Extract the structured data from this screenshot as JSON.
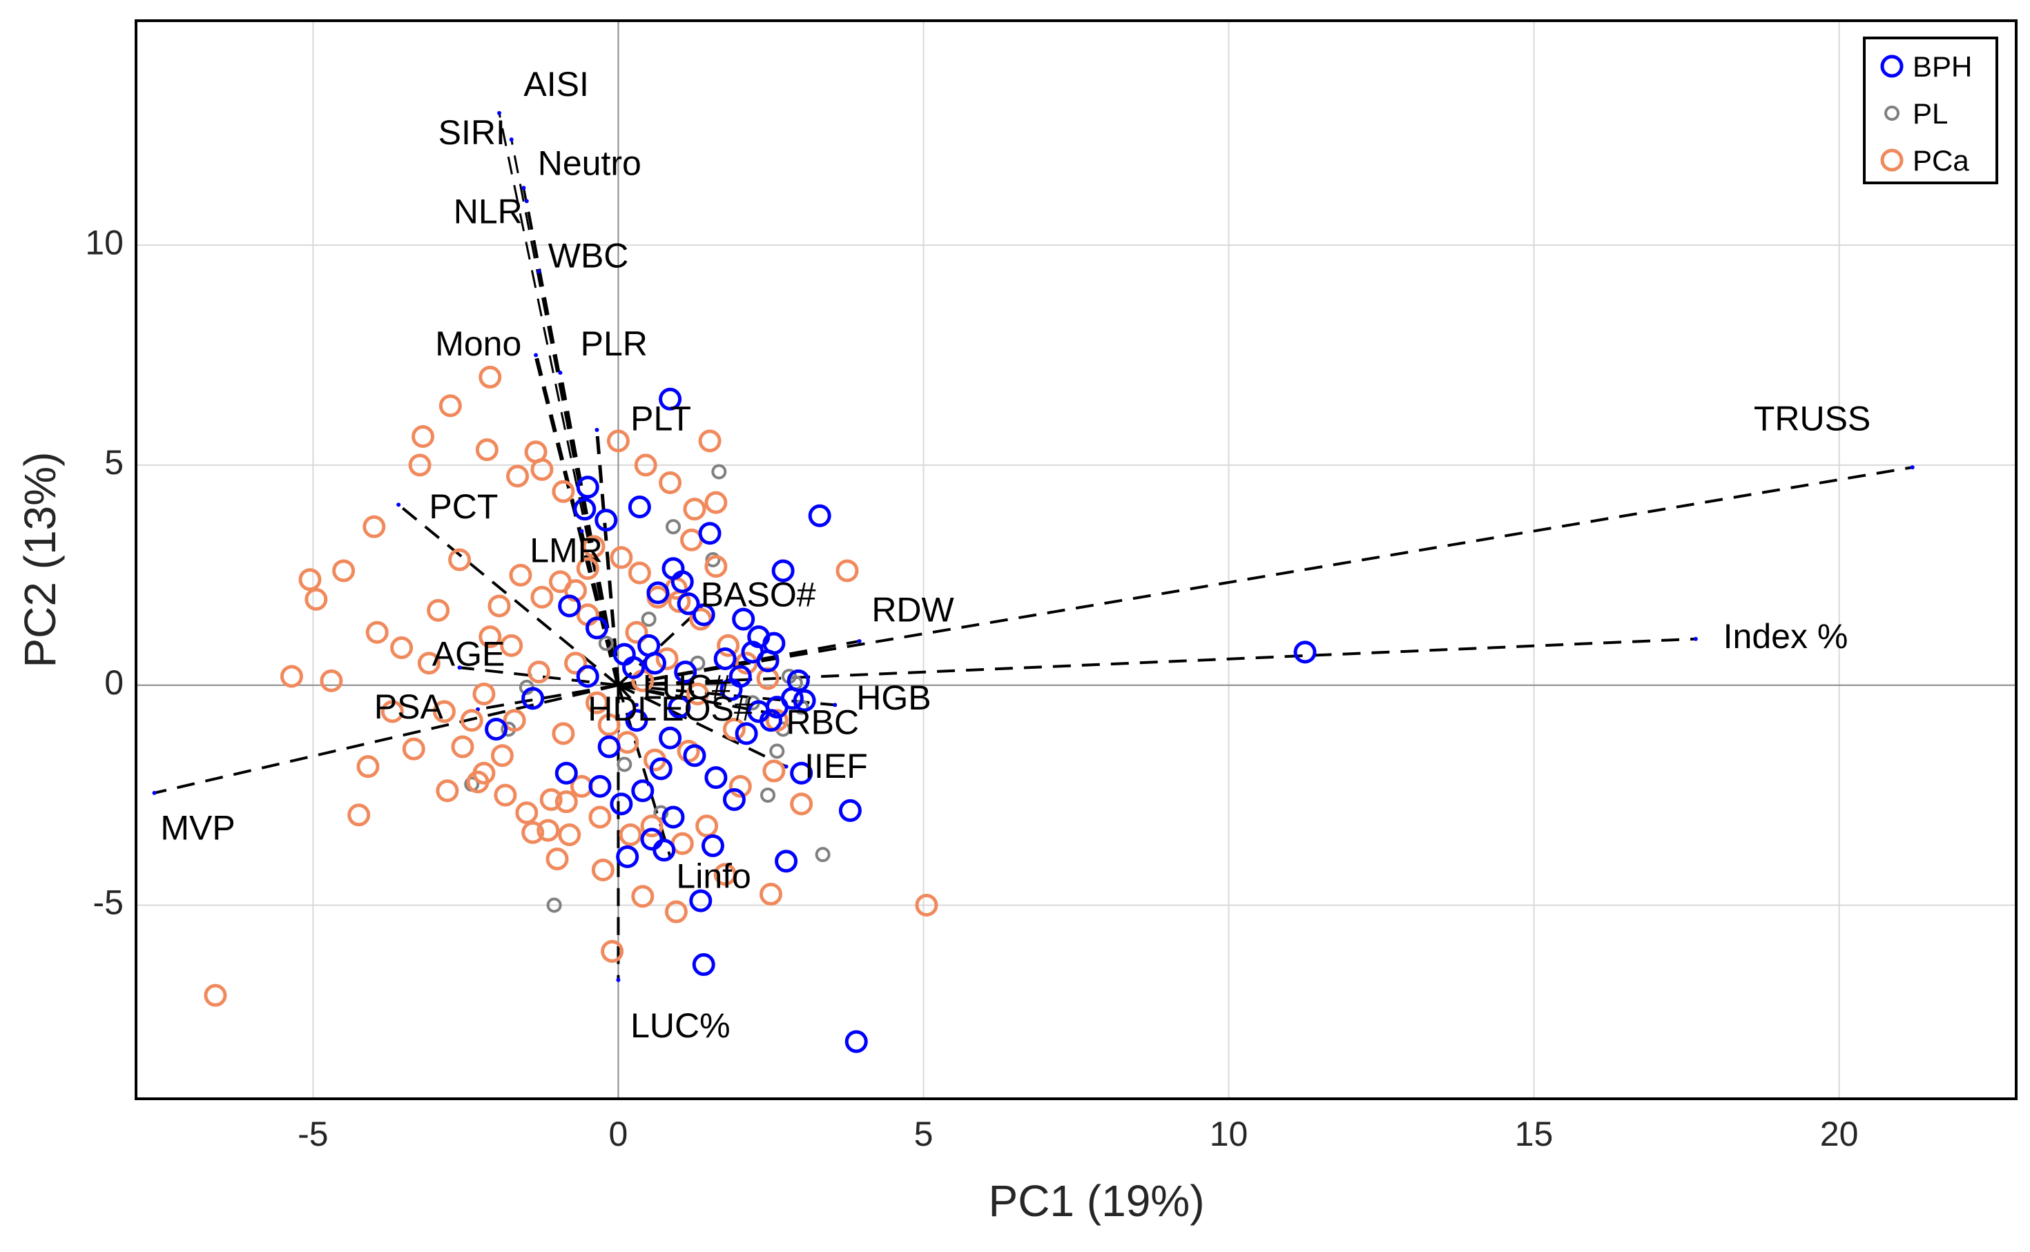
{
  "chart_data": {
    "type": "scatter",
    "subtype": "pca-biplot",
    "title": "",
    "xlabel": "PC1 (19%)",
    "ylabel": "PC2 (13%)",
    "xlim": [
      -7.9,
      22.9
    ],
    "ylim": [
      -9.4,
      15.1
    ],
    "xticks": [
      -5,
      0,
      5,
      10,
      15,
      20
    ],
    "yticks": [
      -5,
      0,
      5,
      10
    ],
    "xtick_labels": [
      "-5",
      "0",
      "5",
      "10",
      "15",
      "20"
    ],
    "ytick_labels": [
      "-5",
      "0",
      "5",
      "10"
    ],
    "grid": true,
    "legend_position": "top-right",
    "loadings": [
      {
        "name": "SIRI",
        "x": -1.95,
        "y": 13.0,
        "lx": -2.95,
        "ly": 12.5,
        "w": 3
      },
      {
        "name": "AISI",
        "x": -1.75,
        "y": 12.4,
        "lx": -1.55,
        "ly": 13.6,
        "w": 3
      },
      {
        "name": "Neutro",
        "x": -1.55,
        "y": 11.3,
        "lx": -1.32,
        "ly": 11.8,
        "w": 3.5
      },
      {
        "name": "NLR",
        "x": -1.5,
        "y": 11.0,
        "lx": -2.7,
        "ly": 10.7,
        "w": 3.5
      },
      {
        "name": "WBC",
        "x": -1.3,
        "y": 9.4,
        "lx": -1.15,
        "ly": 9.7,
        "w": 4
      },
      {
        "name": "Mono",
        "x": -1.35,
        "y": 7.5,
        "lx": -3.0,
        "ly": 7.7,
        "w": 6
      },
      {
        "name": "PLR",
        "x": -0.95,
        "y": 7.1,
        "lx": -0.62,
        "ly": 7.7,
        "w": 5
      },
      {
        "name": "PLT",
        "x": -0.35,
        "y": 5.8,
        "lx": 0.2,
        "ly": 6.0,
        "w": 5
      },
      {
        "name": "PCT",
        "x": -3.6,
        "y": 4.1,
        "lx": -3.1,
        "ly": 4.0,
        "w": 4
      },
      {
        "name": "LMR",
        "x": -0.6,
        "y": 3.5,
        "lx": -1.45,
        "ly": 3.0,
        "w": 4
      },
      {
        "name": "BASO#",
        "x": 1.35,
        "y": 1.75,
        "lx": 1.35,
        "ly": 2.0,
        "w": 4
      },
      {
        "name": "RDW",
        "x": 3.95,
        "y": 1.0,
        "lx": 4.15,
        "ly": 1.65,
        "w": 4
      },
      {
        "name": "TRUSS",
        "x": 21.2,
        "y": 4.95,
        "lx": 18.6,
        "ly": 6.0,
        "w": 4
      },
      {
        "name": "Index %",
        "x": 17.65,
        "y": 1.05,
        "lx": 18.1,
        "ly": 1.05,
        "w": 4
      },
      {
        "name": "AGE",
        "x": -2.6,
        "y": 0.4,
        "lx": -3.05,
        "ly": 0.65,
        "w": 4
      },
      {
        "name": "PSA",
        "x": -2.3,
        "y": -0.55,
        "lx": -4.0,
        "ly": -0.55,
        "w": 4
      },
      {
        "name": "MVP",
        "x": -7.6,
        "y": -2.45,
        "lx": -7.5,
        "ly": -3.3,
        "w": 4
      },
      {
        "name": "HDL",
        "x": 0.3,
        "y": -0.45,
        "lx": -0.5,
        "ly": -0.6,
        "w": 4
      },
      {
        "name": "EOS#",
        "x": 1.2,
        "y": -0.35,
        "lx": 0.7,
        "ly": -0.6,
        "w": 4
      },
      {
        "name": "LUC#",
        "x": 1.7,
        "y": 0.05,
        "lx": 0.4,
        "ly": -0.1,
        "w": 4
      },
      {
        "name": "RBC",
        "x": 2.55,
        "y": -0.65,
        "lx": 2.75,
        "ly": -0.9,
        "w": 4
      },
      {
        "name": "HGB",
        "x": 3.55,
        "y": -0.45,
        "lx": 3.9,
        "ly": -0.35,
        "w": 4
      },
      {
        "name": "IIEF",
        "x": 2.75,
        "y": -1.85,
        "lx": 3.05,
        "ly": -1.9,
        "w": 4
      },
      {
        "name": "Linfo",
        "x": 0.85,
        "y": -3.9,
        "lx": 0.95,
        "ly": -4.4,
        "w": 4
      },
      {
        "name": "LUC%",
        "x": 0.0,
        "y": -6.7,
        "lx": 0.2,
        "ly": -7.8,
        "w": 4
      }
    ],
    "series": [
      {
        "name": "BPH",
        "marker": "circle",
        "color": "#0000ff",
        "size": 14,
        "stroke_width": 5,
        "x": [
          0.85,
          3.3,
          -0.5,
          0.35,
          -0.55,
          -0.2,
          1.5,
          0.9,
          2.7,
          1.05,
          0.65,
          1.15,
          1.4,
          2.05,
          2.3,
          2.55,
          2.45,
          1.75,
          2.95,
          3.05,
          2.85,
          3.0,
          3.8,
          2.75,
          1.55,
          1.35,
          0.55,
          0.75,
          0.15,
          1.4,
          3.9,
          11.25,
          -0.8,
          -0.35,
          0.1,
          -0.5,
          0.6,
          1.1,
          1.85,
          2.3,
          0.3,
          0.85,
          -0.15,
          1.25,
          -0.85,
          0.4,
          0.05,
          2.1,
          1.6,
          2.6,
          0.5,
          -1.4,
          -2.0,
          0.7,
          1.9,
          2.0,
          2.2,
          1.0,
          0.25,
          2.5,
          -0.3,
          0.9
        ],
        "y": [
          6.5,
          3.85,
          4.5,
          4.05,
          4.0,
          3.75,
          3.45,
          2.65,
          2.6,
          2.35,
          2.1,
          1.85,
          1.6,
          1.5,
          1.1,
          0.95,
          0.55,
          0.6,
          0.1,
          -0.35,
          -0.3,
          -2.0,
          -2.85,
          -4.0,
          -3.65,
          -4.9,
          -3.5,
          -3.75,
          -3.9,
          -6.35,
          -8.1,
          0.75,
          1.8,
          1.3,
          0.7,
          0.2,
          0.5,
          0.3,
          -0.1,
          -0.6,
          -0.8,
          -1.2,
          -1.4,
          -1.6,
          -2.0,
          -2.4,
          -2.7,
          -1.1,
          -2.1,
          -0.5,
          0.9,
          -0.3,
          -1.0,
          -1.9,
          -2.6,
          0.2,
          0.75,
          -0.5,
          0.4,
          -0.8,
          -2.3,
          -3.0
        ]
      },
      {
        "name": "PL",
        "marker": "circle",
        "color": "#808080",
        "size": 9,
        "stroke_width": 4,
        "x": [
          1.65,
          0.9,
          1.55,
          2.8,
          3.0,
          2.6,
          2.45,
          3.35,
          -1.05,
          -2.4,
          -1.8,
          2.7,
          2.2,
          1.3,
          0.5,
          -0.2,
          -1.5,
          2.9,
          0.1,
          0.7
        ],
        "y": [
          4.85,
          3.6,
          2.85,
          0.2,
          -0.5,
          -1.5,
          -2.5,
          -3.85,
          -5.0,
          -2.25,
          -1.0,
          -1.0,
          -0.4,
          0.5,
          1.5,
          0.95,
          -0.05,
          0.05,
          -1.8,
          -2.9
        ]
      },
      {
        "name": "PCa",
        "marker": "circle",
        "color": "#f08a5d",
        "size": 14,
        "stroke_width": 5,
        "x": [
          -2.1,
          -2.75,
          -3.2,
          -3.25,
          -2.15,
          -1.35,
          -1.65,
          -1.25,
          0.0,
          0.45,
          0.85,
          1.5,
          1.6,
          1.25,
          3.75,
          1.2,
          -0.4,
          -0.9,
          -4.0,
          -2.6,
          -4.5,
          -5.05,
          -4.95,
          -5.35,
          -4.7,
          -3.7,
          -4.1,
          -3.35,
          -2.8,
          -2.3,
          -1.9,
          -2.4,
          -3.1,
          -2.95,
          -1.6,
          -1.25,
          -0.95,
          -0.7,
          -0.5,
          0.05,
          0.35,
          0.65,
          1.0,
          1.35,
          1.8,
          2.1,
          2.45,
          2.6,
          2.55,
          3.0,
          2.0,
          1.45,
          1.05,
          0.55,
          0.2,
          -0.3,
          -0.8,
          -1.15,
          -1.5,
          -1.85,
          -2.2,
          -2.55,
          -2.85,
          -3.55,
          -3.95,
          -4.25,
          -1.0,
          -1.4,
          -0.85,
          5.05,
          -0.1,
          -6.6,
          2.5,
          1.75,
          0.95,
          0.4,
          -0.25,
          -0.6,
          -1.1,
          -1.7,
          -2.1,
          -0.5,
          0.3,
          0.8,
          1.3,
          1.9,
          -0.35,
          0.15,
          0.6,
          -0.9,
          -1.3,
          -1.75,
          -2.2,
          0.95,
          1.6,
          -0.7,
          -0.15,
          0.4,
          1.15,
          -1.95
        ],
        "y": [
          7.0,
          6.35,
          5.65,
          5.0,
          5.35,
          5.3,
          4.75,
          4.9,
          5.55,
          5.0,
          4.6,
          5.55,
          4.15,
          4.0,
          2.6,
          3.3,
          3.15,
          4.4,
          3.6,
          2.85,
          2.6,
          2.4,
          1.95,
          0.2,
          0.1,
          -0.6,
          -1.85,
          -1.45,
          -2.4,
          -2.2,
          -1.6,
          -0.8,
          0.5,
          1.7,
          2.5,
          2.0,
          2.35,
          2.15,
          2.65,
          2.9,
          2.55,
          2.0,
          1.9,
          1.5,
          0.9,
          0.5,
          0.15,
          -0.8,
          -1.95,
          -2.7,
          -2.3,
          -3.2,
          -3.6,
          -3.2,
          -3.4,
          -3.0,
          -3.4,
          -3.3,
          -2.9,
          -2.5,
          -2.0,
          -1.4,
          -0.6,
          0.85,
          1.2,
          -2.95,
          -3.95,
          -3.35,
          -2.65,
          -5.0,
          -6.05,
          -7.05,
          -4.75,
          -4.3,
          -5.15,
          -4.8,
          -4.2,
          -2.3,
          -2.6,
          -0.8,
          1.1,
          1.6,
          1.2,
          0.6,
          -0.2,
          -1.0,
          -0.4,
          -1.3,
          -1.7,
          -1.1,
          0.3,
          0.9,
          -0.2,
          2.2,
          2.7,
          0.5,
          -0.9,
          0.1,
          -1.5,
          1.8
        ]
      }
    ]
  }
}
